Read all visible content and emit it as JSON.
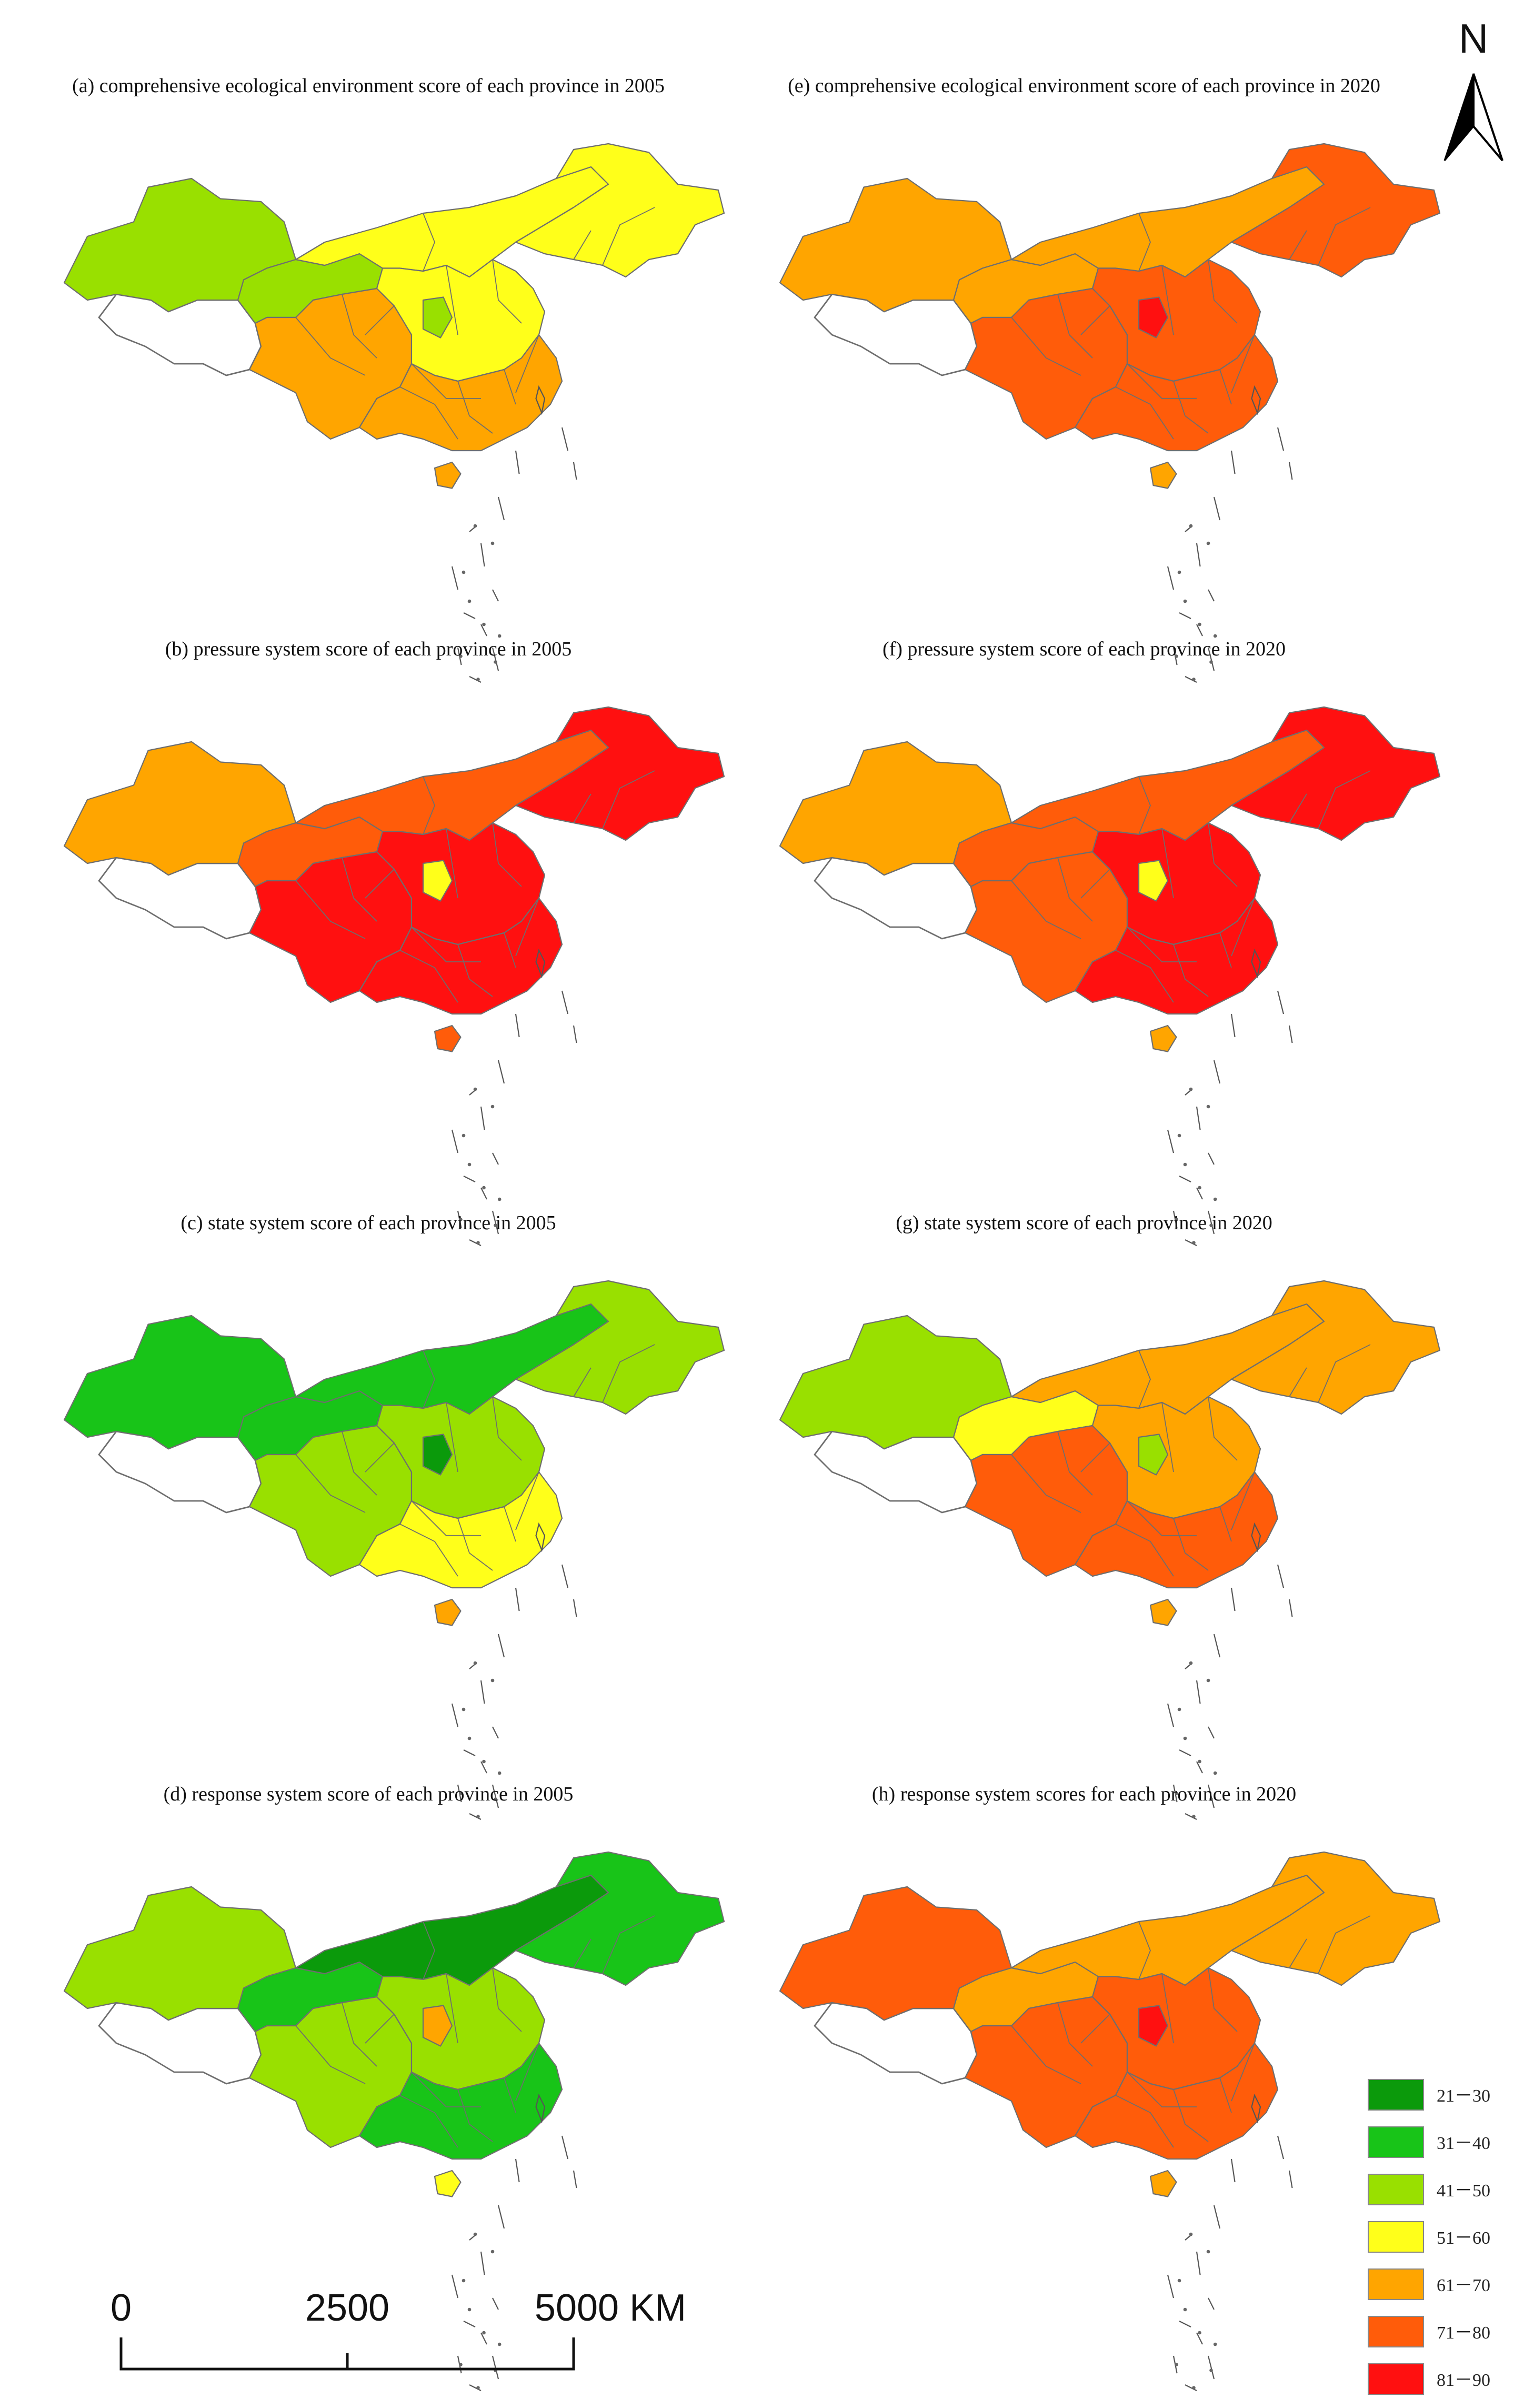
{
  "colors": {
    "c21_30": "#0b9a0b",
    "c31_40": "#18c418",
    "c41_50": "#99e000",
    "c51_60": "#ffff1a",
    "c61_70": "#ffa500",
    "c71_80": "#ff5c0a",
    "c81_90": "#ff1010",
    "null": "#ffffff",
    "border": "#6e6e6e"
  },
  "north_arrow": {
    "label": "N"
  },
  "panels": [
    {
      "id": "a",
      "title": "(a) comprehensive ecological environment score of each province in 2005",
      "classes": {
        "xinjiang": "41-50",
        "gansu": "41-50",
        "west": "61-70",
        "north": "51-60",
        "northeast": "51-60",
        "central": "51-60",
        "southeast": "61-70",
        "hainan": "61-70",
        "accent": "41-50"
      }
    },
    {
      "id": "e",
      "title": "(e) comprehensive ecological environment score of each province in 2020",
      "classes": {
        "xinjiang": "61-70",
        "gansu": "61-70",
        "west": "71-80",
        "north": "61-70",
        "northeast": "71-80",
        "central": "71-80",
        "southeast": "71-80",
        "hainan": "61-70",
        "accent": "81-90"
      }
    },
    {
      "id": "b",
      "title": "(b) pressure system score of each province in 2005",
      "classes": {
        "xinjiang": "61-70",
        "gansu": "71-80",
        "west": "81-90",
        "north": "71-80",
        "northeast": "81-90",
        "central": "81-90",
        "southeast": "81-90",
        "hainan": "71-80",
        "accent": "51-60"
      }
    },
    {
      "id": "f",
      "title": "(f) pressure system score of each province in 2020",
      "classes": {
        "xinjiang": "61-70",
        "gansu": "71-80",
        "west": "71-80",
        "north": "71-80",
        "northeast": "81-90",
        "central": "81-90",
        "southeast": "81-90",
        "hainan": "61-70",
        "accent": "51-60"
      }
    },
    {
      "id": "c",
      "title": "(c) state system score of each province in 2005",
      "classes": {
        "xinjiang": "31-40",
        "gansu": "31-40",
        "west": "41-50",
        "north": "31-40",
        "northeast": "41-50",
        "central": "41-50",
        "southeast": "51-60",
        "hainan": "61-70",
        "accent": "21-30"
      }
    },
    {
      "id": "g",
      "title": "(g) state system score of each province in 2020",
      "classes": {
        "xinjiang": "41-50",
        "gansu": "51-60",
        "west": "71-80",
        "north": "61-70",
        "northeast": "61-70",
        "central": "61-70",
        "southeast": "71-80",
        "hainan": "61-70",
        "accent": "41-50"
      }
    },
    {
      "id": "d",
      "title": "(d) response system score of each province in 2005",
      "classes": {
        "xinjiang": "41-50",
        "gansu": "31-40",
        "west": "41-50",
        "north": "21-30",
        "northeast": "31-40",
        "central": "41-50",
        "southeast": "31-40",
        "hainan": "51-60",
        "accent": "61-70"
      }
    },
    {
      "id": "h",
      "title": "(h) response system scores for each province in 2020",
      "classes": {
        "xinjiang": "71-80",
        "gansu": "61-70",
        "west": "71-80",
        "north": "61-70",
        "northeast": "61-70",
        "central": "71-80",
        "southeast": "71-80",
        "hainan": "61-70",
        "accent": "81-90"
      }
    }
  ],
  "legend": [
    {
      "label": "21－30",
      "color": "#0b9a0b"
    },
    {
      "label": "31－40",
      "color": "#18c418"
    },
    {
      "label": "41－50",
      "color": "#99e000"
    },
    {
      "label": "51－60",
      "color": "#ffff1a"
    },
    {
      "label": "61－70",
      "color": "#ffa500"
    },
    {
      "label": "71－80",
      "color": "#ff5c0a"
    },
    {
      "label": "81－90",
      "color": "#ff1010"
    },
    {
      "label": "null",
      "color": "#ffffff"
    }
  ],
  "scale_bar": {
    "labels": [
      "0",
      "2500",
      "5000 KM"
    ]
  }
}
